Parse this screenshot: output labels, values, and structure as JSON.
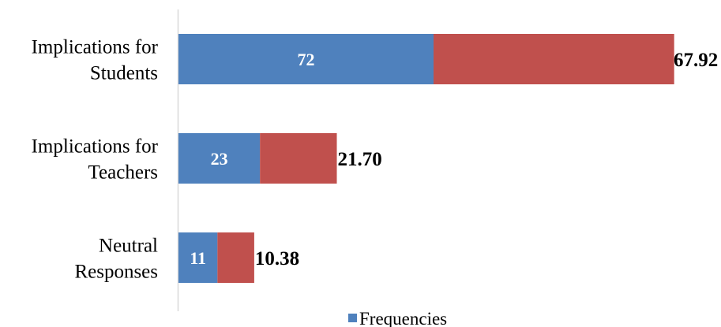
{
  "chart_data": {
    "type": "bar",
    "orientation": "horizontal",
    "stacked": true,
    "categories": [
      [
        "Implications for",
        "Students"
      ],
      [
        "Implications for",
        "Teachers"
      ],
      [
        "Neutral",
        "Responses"
      ]
    ],
    "series": [
      {
        "name": "Frequencies",
        "values": [
          72,
          23,
          11
        ],
        "color": "#4f81bd"
      },
      {
        "values": [
          67.92,
          21.7,
          10.38
        ],
        "color": "#c0504d"
      }
    ],
    "inner_labels": [
      "72",
      "23",
      "11"
    ],
    "end_labels": [
      "67.92",
      "21.70",
      "10.38"
    ],
    "legend": {
      "position": "bottom",
      "entries": [
        "Frequencies"
      ]
    },
    "grid": false
  }
}
